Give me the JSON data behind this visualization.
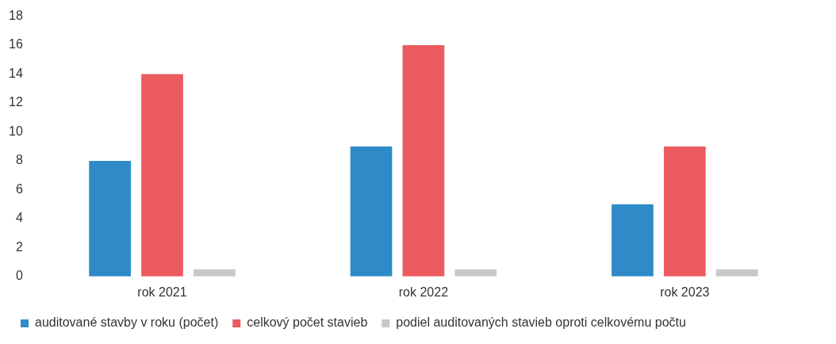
{
  "chart_data": {
    "type": "bar",
    "categories": [
      "rok 2021",
      "rok 2022",
      "rok 2023"
    ],
    "series": [
      {
        "name": "auditované stavby v roku (počet)",
        "color": "#2e8bc7",
        "values": [
          8,
          9,
          5
        ]
      },
      {
        "name": "celkový počet stavieb",
        "color": "#ec5b5f",
        "values": [
          14,
          16,
          9
        ]
      },
      {
        "name": "podiel auditovaných stavieb oproti celkovému počtu",
        "color": "#c8c8c8",
        "values": [
          0.5,
          0.5,
          0.5
        ]
      }
    ],
    "ylim": [
      0,
      18
    ],
    "yticks": [
      0,
      2,
      4,
      6,
      8,
      10,
      12,
      14,
      16,
      18
    ],
    "grid": false,
    "legend": "bottom"
  }
}
